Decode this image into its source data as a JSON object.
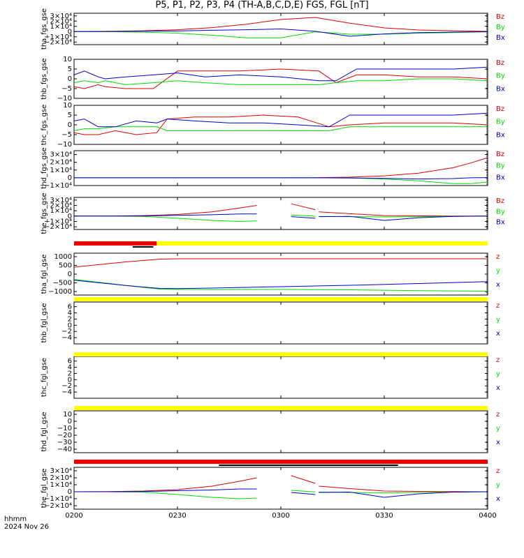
{
  "title": "P5, P1, P2, P3, P4 (TH-A,B,C,D,E) FGS, FGL [nT]",
  "footer": {
    "time_fmt": "hhmm",
    "date": "2024 Nov 26"
  },
  "colors": {
    "z": "#dd0000",
    "y": "#00dd00",
    "x": "#0000cc",
    "yellow": "#ffff00",
    "red": "#ee0000",
    "black": "#000000"
  },
  "chart_data": [
    {
      "type": "line",
      "ylabel": "tha_fgs_gse",
      "ylim": [
        -25000,
        35000
      ],
      "ticks": [
        "3×10⁴",
        "2×10⁴",
        "1×10⁴",
        "0",
        "−1×10⁴",
        "−2×10⁴"
      ],
      "tickvals": [
        30000,
        20000,
        10000,
        0,
        -10000,
        -20000
      ],
      "legend": [
        "Bz",
        "By",
        "Bx"
      ],
      "series": [
        {
          "name": "Bz",
          "x": [
            0,
            10,
            20,
            30,
            40,
            50,
            60,
            70,
            80,
            90,
            100,
            110,
            120
          ],
          "values": [
            0,
            500,
            1500,
            3500,
            7500,
            14000,
            23000,
            27000,
            16000,
            7000,
            3000,
            1500,
            500
          ]
        },
        {
          "name": "By",
          "x": [
            0,
            10,
            20,
            30,
            40,
            50,
            60,
            70,
            80,
            90,
            100,
            110,
            120
          ],
          "values": [
            0,
            -300,
            -1200,
            -3000,
            -7000,
            -12000,
            -12000,
            -500,
            -5000,
            -5000,
            -3000,
            -2000,
            -500
          ]
        },
        {
          "name": "Bx",
          "x": [
            0,
            10,
            20,
            30,
            40,
            50,
            60,
            70,
            80,
            90,
            100,
            110,
            120
          ],
          "values": [
            0,
            200,
            600,
            1200,
            2500,
            3500,
            5000,
            500,
            -9000,
            -4500,
            -2000,
            -1000,
            -300
          ]
        }
      ]
    },
    {
      "type": "line",
      "ylabel": "thb_fgs_gse",
      "ylim": [
        -10,
        10
      ],
      "ticks": [
        "10",
        "5",
        "0",
        "−5",
        "−10"
      ],
      "tickvals": [
        10,
        5,
        0,
        -5,
        -10
      ],
      "legend": [
        "Bz",
        "By",
        "Bx"
      ],
      "series": [
        {
          "name": "Bz",
          "x": [
            0,
            3,
            7,
            9,
            15,
            23,
            30,
            38,
            48,
            60,
            71,
            76,
            82,
            90,
            100,
            110,
            120
          ],
          "values": [
            -4,
            -5,
            -3,
            -4,
            -5,
            -5,
            4,
            4,
            4,
            5,
            4,
            -2,
            2,
            2,
            1,
            1,
            0
          ]
        },
        {
          "name": "By",
          "x": [
            0,
            3,
            7,
            9,
            15,
            23,
            30,
            38,
            48,
            60,
            71,
            76,
            82,
            90,
            100,
            110,
            120
          ],
          "values": [
            -2,
            -1,
            -2,
            -1,
            -3,
            -2,
            -1,
            -2,
            -3,
            -3,
            -3,
            -2,
            -1,
            -1,
            0,
            0,
            -1
          ]
        },
        {
          "name": "Bx",
          "x": [
            0,
            3,
            7,
            9,
            15,
            23,
            30,
            38,
            48,
            60,
            71,
            76,
            82,
            90,
            100,
            110,
            120
          ],
          "values": [
            2,
            4,
            1,
            0,
            1,
            2,
            3,
            1,
            2,
            1,
            -1,
            -1,
            5,
            5,
            5,
            5,
            6
          ]
        }
      ]
    },
    {
      "type": "line",
      "ylabel": "thc_fgs_gse",
      "ylim": [
        -10,
        10
      ],
      "ticks": [
        "10",
        "5",
        "0",
        "−5",
        "−10"
      ],
      "tickvals": [
        10,
        5,
        0,
        -5,
        -10
      ],
      "legend": [
        "Bz",
        "By",
        "Bx"
      ],
      "series": [
        {
          "name": "Bz",
          "x": [
            0,
            3,
            7,
            12,
            18,
            24,
            27,
            35,
            45,
            55,
            65,
            74,
            80,
            90,
            100,
            110,
            120
          ],
          "values": [
            -4,
            -5,
            -5,
            -3,
            -5,
            -4,
            3,
            4,
            4,
            5,
            4,
            -1,
            0,
            1,
            1,
            1,
            0
          ]
        },
        {
          "name": "By",
          "x": [
            0,
            3,
            7,
            12,
            18,
            24,
            27,
            35,
            45,
            55,
            65,
            74,
            80,
            90,
            100,
            110,
            120
          ],
          "values": [
            -3,
            -2,
            -2,
            -1,
            -1,
            -1,
            -3,
            -3,
            -3,
            -3,
            -3,
            -3,
            -1,
            -1,
            -1,
            -1,
            -1
          ]
        },
        {
          "name": "Bx",
          "x": [
            0,
            3,
            7,
            12,
            18,
            24,
            27,
            35,
            45,
            55,
            65,
            74,
            80,
            90,
            100,
            110,
            120
          ],
          "values": [
            2,
            3,
            -1,
            -1,
            2,
            1,
            3,
            2,
            1,
            1,
            0,
            -1,
            5,
            5,
            5,
            5,
            6
          ]
        }
      ]
    },
    {
      "type": "line",
      "ylabel": "thd_fgs_gse",
      "ylim": [
        -10000,
        35000
      ],
      "ticks": [
        "3×10⁴",
        "2×10⁴",
        "1×10⁴",
        "0",
        "−1×10⁴"
      ],
      "tickvals": [
        30000,
        20000,
        10000,
        0,
        -10000
      ],
      "legend": [
        "Bz",
        "By",
        "Bx"
      ],
      "series": [
        {
          "name": "Bz",
          "x": [
            0,
            20,
            40,
            60,
            70,
            80,
            90,
            100,
            110,
            115,
            120
          ],
          "values": [
            0,
            0,
            0,
            0,
            200,
            800,
            2500,
            6000,
            13000,
            19000,
            26000
          ]
        },
        {
          "name": "By",
          "x": [
            0,
            20,
            40,
            60,
            70,
            80,
            90,
            100,
            110,
            115,
            120
          ],
          "values": [
            0,
            0,
            0,
            0,
            0,
            -300,
            -1500,
            -4000,
            -7500,
            -7500,
            -5500
          ]
        },
        {
          "name": "Bx",
          "x": [
            0,
            20,
            40,
            60,
            70,
            80,
            90,
            100,
            110,
            115,
            120
          ],
          "values": [
            0,
            0,
            0,
            0,
            0,
            -200,
            -800,
            -1500,
            -1000,
            0,
            300
          ]
        }
      ]
    },
    {
      "type": "line",
      "ylabel": "the_fgs_gse",
      "ylim": [
        -25000,
        35000
      ],
      "ticks": [
        "3×10⁴",
        "2×10⁴",
        "1×10⁴",
        "0",
        "−1×10⁴",
        "−2×10⁴"
      ],
      "tickvals": [
        30000,
        20000,
        10000,
        0,
        -10000,
        -20000
      ],
      "legend": [
        "Bz",
        "By",
        "Bx"
      ],
      "series": [
        {
          "name": "Bz",
          "x": [
            0,
            10,
            20,
            30,
            40,
            48,
            53,
            null,
            63,
            70,
            null,
            71,
            80,
            90,
            100,
            110,
            120
          ],
          "values": [
            0,
            200,
            1000,
            3000,
            8000,
            15000,
            20000,
            null,
            23000,
            12000,
            null,
            8000,
            4500,
            1000,
            500,
            200,
            0
          ]
        },
        {
          "name": "By",
          "x": [
            0,
            10,
            20,
            30,
            40,
            48,
            53,
            null,
            63,
            70,
            null,
            71,
            80,
            90,
            100,
            110,
            120
          ],
          "values": [
            0,
            0,
            -500,
            -4000,
            -8000,
            -10000,
            -9000,
            null,
            2000,
            -200,
            null,
            -500,
            -1000,
            -1500,
            -1000,
            -500,
            0
          ]
        },
        {
          "name": "Bx",
          "x": [
            0,
            10,
            20,
            30,
            40,
            48,
            53,
            null,
            63,
            70,
            null,
            71,
            80,
            90,
            100,
            110,
            120
          ],
          "values": [
            0,
            0,
            300,
            1500,
            2500,
            4000,
            4000,
            null,
            -1000,
            -4000,
            null,
            -1000,
            -500,
            -8000,
            -3000,
            -500,
            0
          ]
        }
      ]
    },
    {
      "type": "line",
      "ylabel": "tha_fgl_gse",
      "ylim": [
        -1200,
        1200
      ],
      "ticks": [
        "1000",
        "500",
        "0",
        "−500",
        "−1000"
      ],
      "tickvals": [
        1000,
        500,
        0,
        -500,
        -1000
      ],
      "legend": [
        "z",
        "y",
        "x"
      ],
      "series": [
        {
          "name": "z",
          "x": [
            0,
            5,
            10,
            15,
            20,
            25,
            30,
            40,
            60,
            80,
            100,
            120
          ],
          "values": [
            400,
            500,
            600,
            700,
            780,
            860,
            880,
            880,
            880,
            880,
            880,
            880
          ]
        },
        {
          "name": "y",
          "x": [
            0,
            5,
            10,
            15,
            20,
            25,
            30,
            40,
            60,
            80,
            100,
            120
          ],
          "values": [
            -300,
            -420,
            -530,
            -650,
            -760,
            -860,
            -880,
            -890,
            -880,
            -900,
            -950,
            -980
          ]
        },
        {
          "name": "x",
          "x": [
            0,
            5,
            10,
            15,
            20,
            25,
            30,
            40,
            60,
            80,
            100,
            120
          ],
          "values": [
            -350,
            -450,
            -550,
            -650,
            -740,
            -820,
            -830,
            -800,
            -720,
            -640,
            -540,
            -430
          ]
        }
      ]
    },
    {
      "type": "line",
      "ylabel": "thb_fgl_gse",
      "ylim": [
        -6,
        7.5
      ],
      "ticks": [
        "6",
        "4",
        "2",
        "0",
        "−2",
        "−4"
      ],
      "tickvals": [
        6,
        4,
        2,
        0,
        -2,
        -4
      ],
      "legend": [
        "z",
        "y",
        "x"
      ],
      "series": []
    },
    {
      "type": "line",
      "ylabel": "thc_fgl_gse",
      "ylim": [
        -6,
        7.5
      ],
      "ticks": [
        "6",
        "4",
        "2",
        "0",
        "−2",
        "−4"
      ],
      "tickvals": [
        6,
        4,
        2,
        0,
        -2,
        -4
      ],
      "legend": [
        "z",
        "y",
        "x"
      ],
      "series": []
    },
    {
      "type": "line",
      "ylabel": "thd_fgl_gse",
      "ylim": [
        -45,
        15
      ],
      "ticks": [
        "10",
        "0",
        "−10",
        "−20",
        "−30",
        "−40"
      ],
      "tickvals": [
        10,
        0,
        -10,
        -20,
        -30,
        -40
      ],
      "legend": [
        "z",
        "y",
        "x"
      ],
      "series": []
    },
    {
      "type": "line",
      "ylabel": "the_fgl_gse",
      "ylim": [
        -25000,
        35000
      ],
      "ticks": [
        "3×10⁴",
        "2×10⁴",
        "1×10⁴",
        "0",
        "−1×10⁴",
        "−2×10⁴"
      ],
      "tickvals": [
        30000,
        20000,
        10000,
        0,
        -10000,
        -20000
      ],
      "legend": [
        "z",
        "y",
        "x"
      ],
      "series": [
        {
          "name": "z",
          "x": [
            0,
            10,
            20,
            30,
            40,
            48,
            53,
            null,
            63,
            70,
            null,
            71,
            80,
            90,
            100,
            110,
            120
          ],
          "values": [
            0,
            200,
            1000,
            3000,
            8000,
            15000,
            20000,
            null,
            23000,
            12000,
            null,
            8000,
            4500,
            1000,
            500,
            200,
            0
          ]
        },
        {
          "name": "y",
          "x": [
            0,
            10,
            20,
            30,
            40,
            48,
            53,
            null,
            63,
            70,
            null,
            71,
            80,
            90,
            100,
            110,
            120
          ],
          "values": [
            0,
            0,
            -500,
            -4000,
            -8000,
            -10000,
            -9000,
            null,
            2000,
            -200,
            null,
            -500,
            -1000,
            -1500,
            -1000,
            -500,
            0
          ]
        },
        {
          "name": "x",
          "x": [
            0,
            10,
            20,
            30,
            40,
            48,
            53,
            null,
            63,
            70,
            null,
            71,
            80,
            90,
            100,
            110,
            120
          ],
          "values": [
            0,
            0,
            300,
            1500,
            2500,
            4000,
            4000,
            null,
            -1000,
            -4000,
            null,
            -1000,
            -500,
            -8000,
            -3000,
            -500,
            0
          ]
        }
      ]
    }
  ],
  "xaxis": {
    "range_min": [
      0,
      120
    ],
    "ticks": [
      "0200",
      "0230",
      "0300",
      "0330",
      "0400"
    ],
    "tickvals": [
      0,
      30,
      60,
      90,
      120
    ]
  },
  "bars": [
    {
      "after_panel": 4,
      "segments": [
        {
          "from": 0,
          "to": 24,
          "color": "red"
        },
        {
          "from": 24,
          "to": 120,
          "color": "yellow"
        }
      ],
      "marks": [
        {
          "from": 17,
          "to": 23
        }
      ]
    },
    {
      "after_panel": 5,
      "segments": [
        {
          "from": 0,
          "to": 120,
          "color": "yellow"
        }
      ],
      "marks": []
    },
    {
      "after_panel": 6,
      "segments": [
        {
          "from": 0,
          "to": 120,
          "color": "yellow"
        }
      ],
      "marks": []
    },
    {
      "after_panel": 7,
      "segments": [
        {
          "from": 0,
          "to": 120,
          "color": "yellow"
        }
      ],
      "marks": []
    },
    {
      "after_panel": 8,
      "segments": [
        {
          "from": 0,
          "to": 120,
          "color": "red"
        }
      ],
      "marks": [
        {
          "from": 42,
          "to": 94
        }
      ]
    }
  ]
}
